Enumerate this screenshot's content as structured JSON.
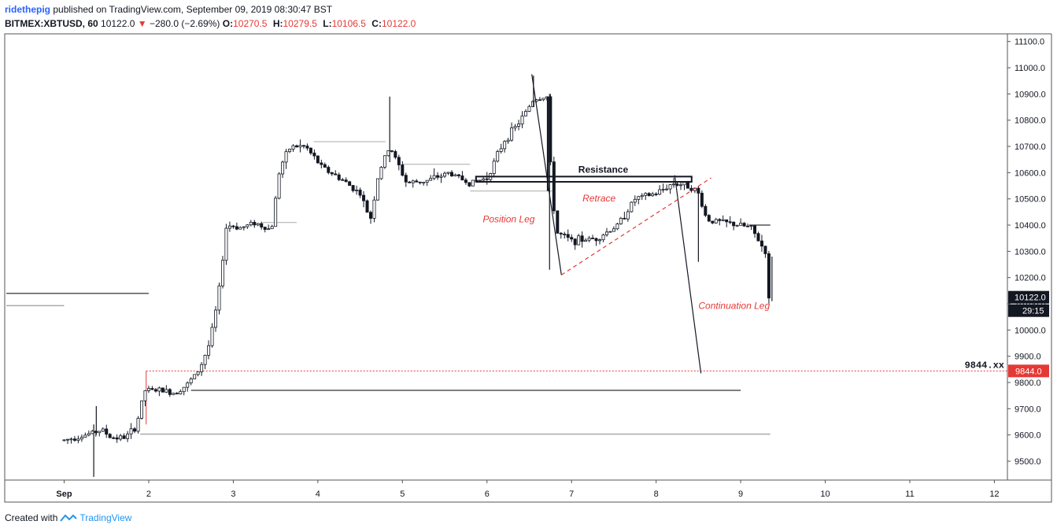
{
  "header": {
    "author": "ridethepig",
    "published_text": "published on TradingView.com, September 09, 2019 08:30:47 BST",
    "symbol": "BITMEX:XBTUSD, 60",
    "last": "10122.0",
    "change": "−280.0 (−2.69%)",
    "open_label": "O:",
    "open": "10270.5",
    "high_label": "H:",
    "high": "10279.5",
    "low_label": "L:",
    "low": "10106.5",
    "close_label": "C:",
    "close": "10122.0"
  },
  "footer": {
    "created_with": "Created with",
    "brand": "TradingView"
  },
  "colors": {
    "down": "#e53935",
    "accent": "#2196f3",
    "candle": "#131722",
    "price_tag": "#131722",
    "target_tag": "#e53935"
  },
  "chart_data": {
    "type": "candlestick",
    "x_ticks": [
      "Sep",
      "2",
      "3",
      "4",
      "5",
      "6",
      "7",
      "8",
      "9",
      "10",
      "11",
      "12"
    ],
    "y_ticks": [
      "9500.0",
      "9600.0",
      "9700.0",
      "9800.0",
      "9900.0",
      "10000.0",
      "10100.0",
      "10200.0",
      "10300.0",
      "10400.0",
      "10500.0",
      "10600.0",
      "10700.0",
      "10800.0",
      "10900.0",
      "11000.0",
      "11100.0"
    ],
    "ylim": [
      9430,
      11125
    ],
    "xlim_days": [
      0.5,
      12.2
    ],
    "last_price_label": "10122.0",
    "countdown_label": "29:15",
    "target_level": 9844,
    "target_label": "9844.xx",
    "target_tag": "9844.0",
    "annotations": {
      "resistance": "Resistance",
      "retrace": "Retrace",
      "position_leg": "Position Leg",
      "continuation_leg": "Continuation Leg"
    },
    "price_path": [
      [
        1.0,
        9580
      ],
      [
        1.25,
        9600
      ],
      [
        1.45,
        9620
      ],
      [
        1.55,
        9590
      ],
      [
        1.72,
        9590
      ],
      [
        1.85,
        9630
      ],
      [
        1.95,
        9770
      ],
      [
        2.15,
        9770
      ],
      [
        2.3,
        9760
      ],
      [
        2.45,
        9790
      ],
      [
        2.6,
        9850
      ],
      [
        2.72,
        9950
      ],
      [
        2.82,
        10120
      ],
      [
        2.92,
        10400
      ],
      [
        3.1,
        10390
      ],
      [
        3.25,
        10410
      ],
      [
        3.45,
        10380
      ],
      [
        3.55,
        10620
      ],
      [
        3.68,
        10700
      ],
      [
        3.85,
        10700
      ],
      [
        4.05,
        10620
      ],
      [
        4.3,
        10570
      ],
      [
        4.5,
        10520
      ],
      [
        4.62,
        10420
      ],
      [
        4.72,
        10600
      ],
      [
        4.85,
        10700
      ],
      [
        5.05,
        10560
      ],
      [
        5.3,
        10570
      ],
      [
        5.55,
        10600
      ],
      [
        5.8,
        10560
      ],
      [
        6.0,
        10580
      ],
      [
        6.2,
        10720
      ],
      [
        6.4,
        10800
      ],
      [
        6.55,
        10880
      ],
      [
        6.72,
        10890
      ],
      [
        6.76,
        10540
      ],
      [
        6.83,
        10370
      ],
      [
        7.0,
        10340
      ],
      [
        7.3,
        10350
      ],
      [
        7.55,
        10400
      ],
      [
        7.75,
        10500
      ],
      [
        8.0,
        10520
      ],
      [
        8.2,
        10560
      ],
      [
        8.4,
        10550
      ],
      [
        8.5,
        10520
      ],
      [
        8.6,
        10420
      ],
      [
        8.8,
        10410
      ],
      [
        8.98,
        10400
      ],
      [
        9.12,
        10390
      ],
      [
        9.25,
        10320
      ],
      [
        9.35,
        10270
      ],
      [
        9.4,
        10122
      ]
    ]
  }
}
